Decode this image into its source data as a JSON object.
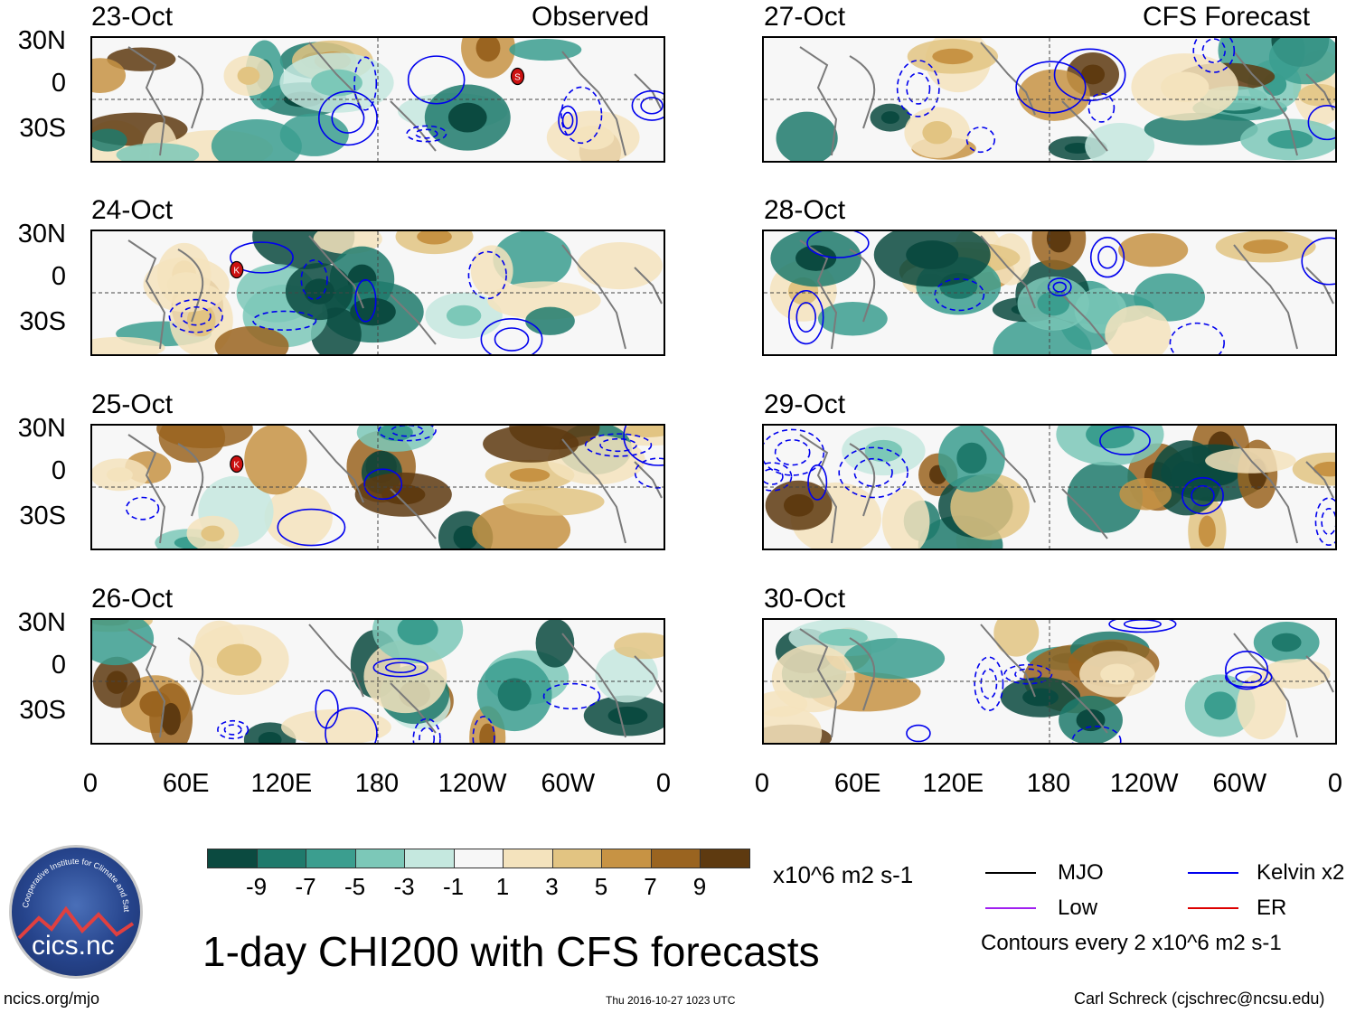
{
  "title": "1-day CHI200 with CFS forecasts",
  "left_header": "Observed",
  "right_header": "CFS Forecast",
  "panels_left": [
    {
      "date": "23-Oct",
      "storms": [
        {
          "label": "S",
          "lon": 268
        }
      ]
    },
    {
      "date": "24-Oct",
      "storms": [
        {
          "label": "K",
          "lon": 91
        }
      ]
    },
    {
      "date": "25-Oct",
      "storms": [
        {
          "label": "K",
          "lon": 91
        }
      ]
    },
    {
      "date": "26-Oct",
      "storms": []
    }
  ],
  "panels_right": [
    {
      "date": "27-Oct"
    },
    {
      "date": "28-Oct"
    },
    {
      "date": "29-Oct"
    },
    {
      "date": "30-Oct"
    }
  ],
  "y_ticks": [
    "30N",
    "0",
    "30S"
  ],
  "x_ticks": [
    "0",
    "60E",
    "120E",
    "180",
    "120W",
    "60W",
    "0"
  ],
  "colorbar": {
    "labels": [
      "-9",
      "-7",
      "-5",
      "-3",
      "-1",
      "1",
      "3",
      "5",
      "7",
      "9"
    ],
    "colors": [
      "#0b4a40",
      "#1f7a6c",
      "#3b9e8f",
      "#7cc8b8",
      "#c5e8df",
      "#f7f7f7",
      "#f4e3bd",
      "#e2c482",
      "#c79344",
      "#9a6420",
      "#5e3a10"
    ],
    "units": "x10^6 m2 s-1"
  },
  "legend": {
    "items": [
      {
        "name": "MJO",
        "color": "#000000"
      },
      {
        "name": "Kelvin x2",
        "color": "#0000ee"
      },
      {
        "name": "Low",
        "color": "#a020f0"
      },
      {
        "name": "ER",
        "color": "#dd0000"
      }
    ],
    "note": "Contours every 2 x10^6 m2 s-1"
  },
  "logo_text": "cics.nc",
  "logo_ring_text": "Cooperative Institute for Climate and Satellites",
  "footer": {
    "left": "ncics.org/mjo",
    "center": "Thu 2016-10-27 1023 UTC",
    "right": "Carl Schreck (cjschrec@ncsu.edu)"
  }
}
